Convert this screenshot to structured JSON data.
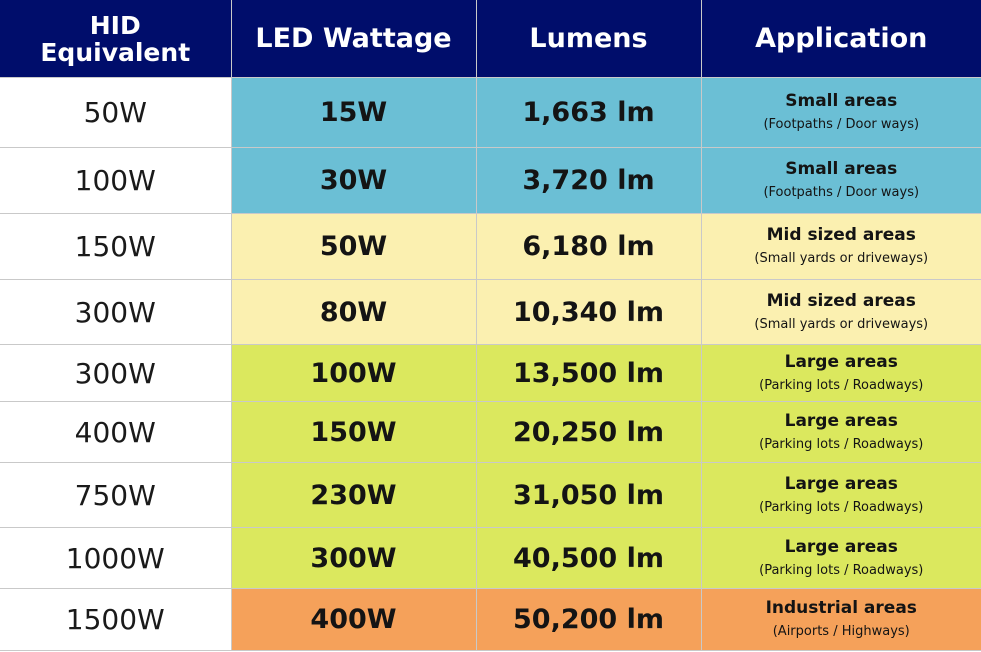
{
  "header": {
    "hid_line1": "HID",
    "hid_line2": "Equivalent",
    "led": "LED Wattage",
    "lumens": "Lumens",
    "application": "Application"
  },
  "colors": {
    "header_bg": "#000d6b",
    "small": "#6bbfd5",
    "mid": "#fbf0b0",
    "large": "#dbe85e",
    "industrial": "#f5a15a"
  },
  "rows": [
    {
      "hid": "50W",
      "led": "15W",
      "lumens": "1,663 lm",
      "app_title": "Small areas",
      "app_sub": "(Footpaths / Door ways)",
      "tier": "small"
    },
    {
      "hid": "100W",
      "led": "30W",
      "lumens": "3,720 lm",
      "app_title": "Small areas",
      "app_sub": "(Footpaths / Door ways)",
      "tier": "small"
    },
    {
      "hid": "150W",
      "led": "50W",
      "lumens": "6,180 lm",
      "app_title": "Mid sized areas",
      "app_sub": "(Small yards or driveways)",
      "tier": "mid"
    },
    {
      "hid": "300W",
      "led": "80W",
      "lumens": "10,340 lm",
      "app_title": "Mid sized areas",
      "app_sub": "(Small yards or driveways)",
      "tier": "mid"
    },
    {
      "hid": "300W",
      "led": "100W",
      "lumens": "13,500 lm",
      "app_title": "Large areas",
      "app_sub": "(Parking lots / Roadways)",
      "tier": "large"
    },
    {
      "hid": "400W",
      "led": "150W",
      "lumens": "20,250 lm",
      "app_title": "Large areas",
      "app_sub": "(Parking lots / Roadways)",
      "tier": "large"
    },
    {
      "hid": "750W",
      "led": "230W",
      "lumens": "31,050 lm",
      "app_title": "Large areas",
      "app_sub": "(Parking lots / Roadways)",
      "tier": "large"
    },
    {
      "hid": "1000W",
      "led": "300W",
      "lumens": "40,500 lm",
      "app_title": "Large areas",
      "app_sub": "(Parking lots / Roadways)",
      "tier": "large"
    },
    {
      "hid": "1500W",
      "led": "400W",
      "lumens": "50,200 lm",
      "app_title": "Industrial areas",
      "app_sub": "(Airports / Highways)",
      "tier": "industrial"
    }
  ]
}
